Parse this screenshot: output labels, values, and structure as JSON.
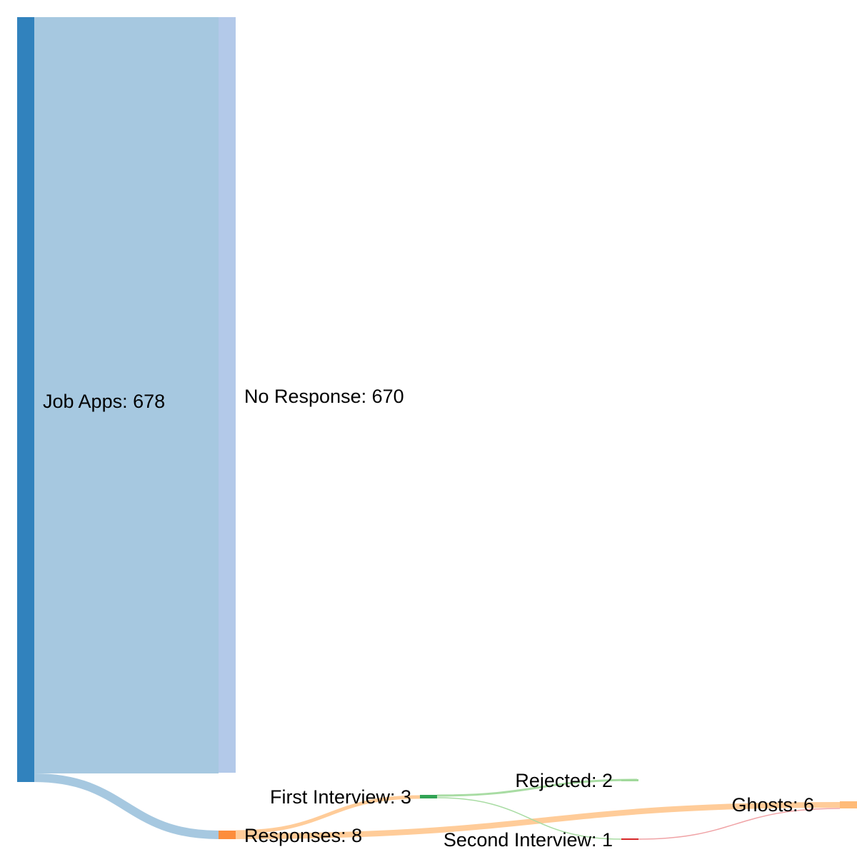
{
  "nodes": [
    {
      "id": "job_apps",
      "label": "Job Apps: 678",
      "color": "#3182bd"
    },
    {
      "id": "no_response",
      "label": "No Response: 670",
      "color": "#b3c9e9"
    },
    {
      "id": "responses",
      "label": "Responses: 8",
      "color": "#fd8d3c"
    },
    {
      "id": "first_interview",
      "label": "First Interview: 3",
      "color": "#31a354"
    },
    {
      "id": "rejected",
      "label": "Rejected: 2",
      "color": "#a1d99b"
    },
    {
      "id": "second_interview",
      "label": "Second Interview: 1",
      "color": "#d62728"
    },
    {
      "id": "ghosts",
      "label": "Ghosts: 6",
      "color": "#ffbb78"
    }
  ],
  "links": [
    {
      "source": "job_apps",
      "target": "no_response",
      "value": 670,
      "color": "#a6c8e0"
    },
    {
      "source": "job_apps",
      "target": "responses",
      "value": 8,
      "color": "#a6c8e0"
    },
    {
      "source": "responses",
      "target": "first_interview",
      "value": 3,
      "color": "#ffcc99"
    },
    {
      "source": "responses",
      "target": "ghosts",
      "value": 5,
      "color": "#ffcc99"
    },
    {
      "source": "first_interview",
      "target": "rejected",
      "value": 2,
      "color": "#a8dca3"
    },
    {
      "source": "first_interview",
      "target": "second_interview",
      "value": 1,
      "color": "#a8dca3"
    },
    {
      "source": "second_interview",
      "target": "ghosts",
      "value": 1,
      "color": "#f0a3a6"
    }
  ]
}
